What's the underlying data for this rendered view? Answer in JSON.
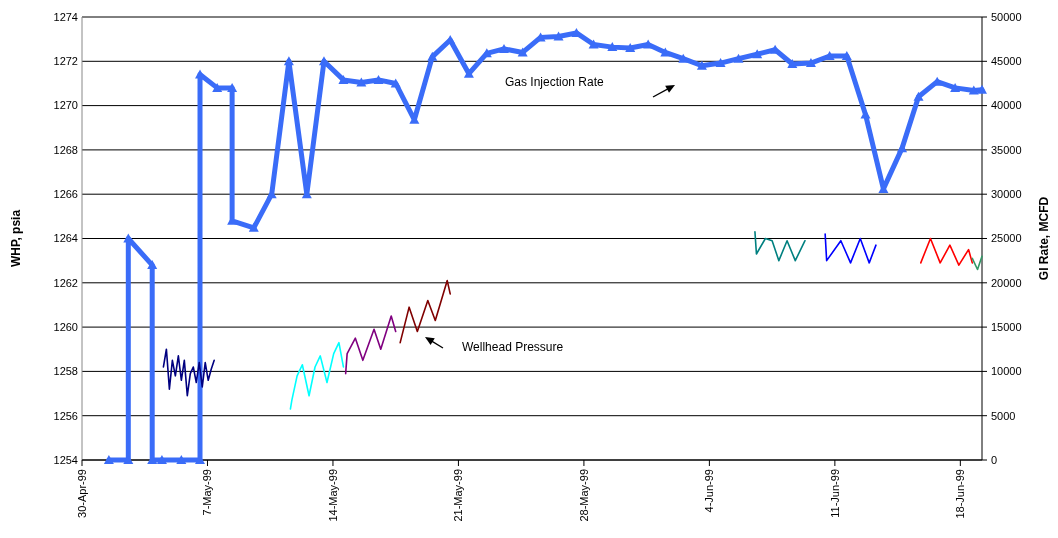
{
  "chart_data": {
    "type": "line",
    "ylabel": "WHP, psia",
    "y2label": "GI Rate, MCFD",
    "xlim": [
      "1999-04-30",
      "1999-06-19T05:00"
    ],
    "xticks": [
      {
        "value": "1999-04-30",
        "label": "30-Apr-99"
      },
      {
        "value": "1999-05-07",
        "label": "7-May-99"
      },
      {
        "value": "1999-05-14",
        "label": "14-May-99"
      },
      {
        "value": "1999-05-21",
        "label": "21-May-99"
      },
      {
        "value": "1999-05-28",
        "label": "28-May-99"
      },
      {
        "value": "1999-06-04",
        "label": "4-Jun-99"
      },
      {
        "value": "1999-06-11",
        "label": "11-Jun-99"
      },
      {
        "value": "1999-06-18",
        "label": "18-Jun-99"
      }
    ],
    "ylim": [
      1254,
      1274
    ],
    "yticks": [
      1254,
      1256,
      1258,
      1260,
      1262,
      1264,
      1266,
      1268,
      1270,
      1272,
      1274
    ],
    "y2lim": [
      0,
      50000
    ],
    "y2ticks": [
      0,
      5000,
      10000,
      15000,
      20000,
      25000,
      30000,
      35000,
      40000,
      45000,
      50000
    ],
    "grid": "y",
    "line_style": "solid",
    "annotations": [
      "Gas Injection Rate",
      "Wellhead Pressure"
    ],
    "series": [
      {
        "color": "#3a6cf8",
        "axis": "y2",
        "marker": "triangle",
        "x": [
          "1999-05-01T12:00",
          "1999-05-02T14:00",
          "1999-05-02T14:00",
          "1999-05-03T22:00",
          "1999-05-03T22:00",
          "1999-05-04T11:00",
          "1999-05-05T13:00",
          "1999-05-06T14:00",
          "1999-05-06T14:00",
          "1999-05-07T13:00",
          "1999-05-08T09:00",
          "1999-05-08T09:00",
          "1999-05-09T14:00",
          "1999-05-10T14:00",
          "1999-05-11T13:00",
          "1999-05-12T13:00",
          "1999-05-13T12:00",
          "1999-05-14T14:00",
          "1999-05-15T14:00",
          "1999-05-16T13:00",
          "1999-05-17T12:00",
          "1999-05-18T13:00",
          "1999-05-19T13:00",
          "1999-05-20T13:00",
          "1999-05-21T14:00",
          "1999-05-22T14:00",
          "1999-05-23T13:00",
          "1999-05-24T14:00",
          "1999-05-25T14:00",
          "1999-05-26T14:00",
          "1999-05-27T14:00",
          "1999-05-28T13:00",
          "1999-05-29T14:00",
          "1999-05-30T14:00",
          "1999-05-31T14:00",
          "1999-06-01T13:00",
          "1999-06-02T13:00",
          "1999-06-03T14:00",
          "1999-06-04T15:00",
          "1999-06-05T15:00",
          "1999-06-06T16:00",
          "1999-06-07T16:00",
          "1999-06-08T15:00",
          "1999-06-09T16:00",
          "1999-06-10T17:00",
          "1999-06-11T16:00",
          "1999-06-12T17:00",
          "1999-06-13T17:00",
          "1999-06-14T18:00",
          "1999-06-15T16:00",
          "1999-06-16T17:00",
          "1999-06-17T17:00",
          "1999-06-18T18:00",
          "1999-06-19T05:00"
        ],
        "values": [
          0,
          0,
          25000,
          22000,
          0,
          0,
          0,
          0,
          43500,
          42000,
          42000,
          27000,
          26200,
          30000,
          45000,
          30000,
          45000,
          42900,
          42600,
          42900,
          42500,
          38400,
          45500,
          47400,
          43600,
          45900,
          46400,
          46000,
          47700,
          47800,
          48200,
          46900,
          46600,
          46500,
          46900,
          46000,
          45300,
          44500,
          44800,
          45300,
          45800,
          46300,
          44700,
          44800,
          45600,
          45600,
          39000,
          30600,
          35200,
          41000,
          42700,
          42000,
          41700,
          41800
        ]
      },
      {
        "color": "#000080",
        "marker": "none",
        "x": [
          "1999-05-04T13:00",
          "1999-05-04T17:00",
          "1999-05-04T21:00",
          "1999-05-05T01:00",
          "1999-05-05T05:00",
          "1999-05-05T09:00",
          "1999-05-05T13:00",
          "1999-05-05T17:00",
          "1999-05-05T21:00",
          "1999-05-06T01:00",
          "1999-05-06T05:00",
          "1999-05-06T09:00",
          "1999-05-06T13:00",
          "1999-05-06T17:00",
          "1999-05-06T21:00",
          "1999-05-07T01:00",
          "1999-05-07T05:00",
          "1999-05-07T09:00"
        ],
        "values": [
          1258.2,
          1259.0,
          1257.2,
          1258.5,
          1257.8,
          1258.7,
          1257.6,
          1258.5,
          1256.9,
          1257.9,
          1258.2,
          1257.5,
          1258.4,
          1257.3,
          1258.4,
          1257.6,
          1258.1,
          1258.5
        ]
      },
      {
        "color": "#00ffff",
        "marker": "none",
        "x": [
          "1999-05-11T15:00",
          "1999-05-11T17:00",
          "1999-05-12T00:00",
          "1999-05-12T07:00",
          "1999-05-12T16:00",
          "1999-05-13T00:00",
          "1999-05-13T07:00",
          "1999-05-13T16:00",
          "1999-05-14T01:00",
          "1999-05-14T08:00",
          "1999-05-14T14:00"
        ],
        "values": [
          1256.3,
          1256.7,
          1257.8,
          1258.3,
          1256.9,
          1258.2,
          1258.7,
          1257.5,
          1258.8,
          1259.3,
          1258.2
        ]
      },
      {
        "color": "#800080",
        "marker": "none",
        "x": [
          "1999-05-14T17:00",
          "1999-05-14T19:00",
          "1999-05-15T06:00",
          "1999-05-15T16:00",
          "1999-05-16T07:00",
          "1999-05-16T16:00",
          "1999-05-17T06:00",
          "1999-05-17T12:00"
        ],
        "values": [
          1257.9,
          1258.8,
          1259.5,
          1258.5,
          1259.9,
          1259.0,
          1260.5,
          1259.8
        ]
      },
      {
        "color": "#800000",
        "marker": "none",
        "x": [
          "1999-05-17T18:00",
          "1999-05-18T06:00",
          "1999-05-18T17:00",
          "1999-05-19T07:00",
          "1999-05-19T17:00",
          "1999-05-20T09:00",
          "1999-05-20T13:00"
        ],
        "values": [
          1259.3,
          1260.9,
          1259.8,
          1261.2,
          1260.3,
          1262.1,
          1261.5
        ]
      },
      {
        "color": "#008080",
        "marker": "none",
        "x": [
          "1999-06-06T13:00",
          "1999-06-06T15:00",
          "1999-06-07T03:00",
          "1999-06-07T12:00",
          "1999-06-07T21:00",
          "1999-06-08T08:00",
          "1999-06-08T19:00",
          "1999-06-09T08:00"
        ],
        "values": [
          1264.3,
          1263.3,
          1264.0,
          1263.9,
          1263.0,
          1263.9,
          1263.0,
          1263.9
        ]
      },
      {
        "color": "#0000ff",
        "marker": "none",
        "x": [
          "1999-06-10T11:00",
          "1999-06-10T13:00",
          "1999-06-11T08:00",
          "1999-06-11T21:00",
          "1999-06-12T10:00",
          "1999-06-12T22:00",
          "1999-06-13T07:00"
        ],
        "values": [
          1264.2,
          1263.0,
          1263.9,
          1262.9,
          1264.0,
          1262.9,
          1263.7
        ]
      },
      {
        "color": "#ff0000",
        "marker": "none",
        "x": [
          "1999-06-15T19:00",
          "1999-06-16T08:00",
          "1999-06-16T21:00",
          "1999-06-17T10:00",
          "1999-06-17T22:00",
          "1999-06-18T11:00",
          "1999-06-18T16:00"
        ],
        "values": [
          1262.9,
          1264.0,
          1262.9,
          1263.7,
          1262.8,
          1263.5,
          1262.9
        ]
      },
      {
        "color": "#339966",
        "marker": "none",
        "x": [
          "1999-06-18T16:00",
          "1999-06-18T23:00",
          "1999-06-19T05:00"
        ],
        "values": [
          1263.1,
          1262.6,
          1263.2
        ]
      }
    ]
  }
}
